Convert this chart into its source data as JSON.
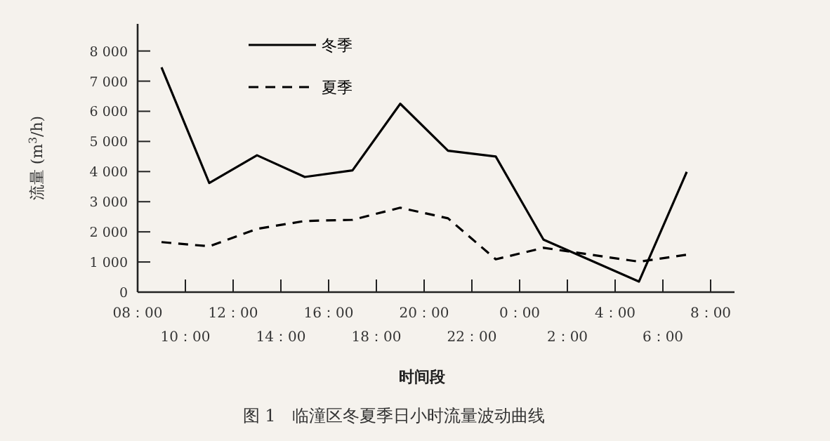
{
  "chart_data": {
    "type": "line",
    "title": "图 1　临潼区冬夏季日小时流量波动曲线",
    "xlabel": "时间段",
    "ylabel": "流量 (m$^{3}$/h)",
    "categories": [
      "08：00",
      null,
      "10：00",
      null,
      "12：00",
      null,
      "14：00",
      null,
      "16：00",
      null,
      "18：00",
      null,
      "20：00",
      null,
      "22：00",
      null,
      "0：00",
      null,
      "2：00",
      null,
      "4：00",
      null,
      "6：00",
      null,
      "8：00"
    ],
    "ylim": [
      0,
      8900
    ],
    "yticks": [
      0,
      {
        "value": 1000,
        "label": "1 000"
      },
      {
        "value": 2000,
        "label": "2 000"
      },
      {
        "value": 3000,
        "label": "3 000"
      },
      {
        "value": 4000,
        "label": "4 000"
      },
      {
        "value": 5000,
        "label": "5 000"
      },
      {
        "value": 6000,
        "label": "6 000"
      },
      {
        "value": 7000,
        "label": "7 000"
      },
      {
        "value": 8000,
        "label": "8 000"
      }
    ],
    "legend": "top left",
    "series": [
      {
        "name": "冬季",
        "color": "#000000",
        "line_style": "solid",
        "values": [
          null,
          7460,
          null,
          3620,
          null,
          4540,
          null,
          3820,
          null,
          4040,
          null,
          6250,
          null,
          4690,
          null,
          4500,
          null,
          1740,
          null,
          null,
          null,
          350,
          null,
          3990,
          null
        ]
      },
      {
        "name": "夏季",
        "color": "#000000",
        "line_style": "dashed",
        "values": [
          null,
          1660,
          null,
          1520,
          null,
          2100,
          null,
          2360,
          null,
          2400,
          null,
          2800,
          null,
          2450,
          null,
          1090,
          null,
          1470,
          null,
          null,
          null,
          1010,
          null,
          1240,
          null
        ]
      }
    ]
  }
}
